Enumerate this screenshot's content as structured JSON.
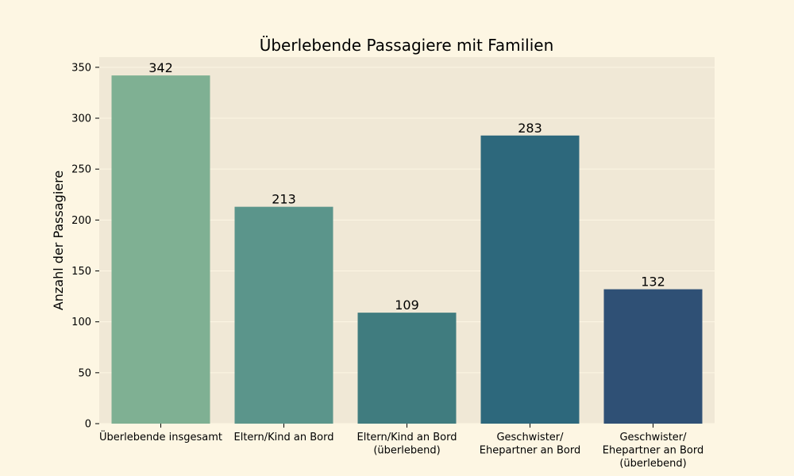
{
  "chart_data": {
    "type": "bar",
    "title": "Überlebende Passagiere mit Familien",
    "xlabel": "",
    "ylabel": "Anzahl der Passagiere",
    "categories": [
      "Überlebende insgesamt",
      "Eltern/Kind an Bord",
      "Eltern/Kind an Bord\n(überlebend)",
      "Geschwister/\nEhepartner an Bord",
      "Geschwister/\nEhepartner an Bord\n(überlebend)"
    ],
    "values": [
      342,
      213,
      109,
      283,
      132
    ],
    "data_labels": [
      "342",
      "213",
      "109",
      "283",
      "132"
    ],
    "ylim": [
      0,
      360
    ],
    "yticks": [
      0,
      50,
      100,
      150,
      200,
      250,
      300,
      350
    ],
    "grid": true,
    "legend": "none"
  },
  "colors": {
    "page_background": "#fdf6e3",
    "plot_background": "#f0e8d6",
    "grid": "#fdf6e3",
    "bars": [
      "#7fb093",
      "#5b958b",
      "#407c7f",
      "#2d687c",
      "#2f5075"
    ]
  }
}
